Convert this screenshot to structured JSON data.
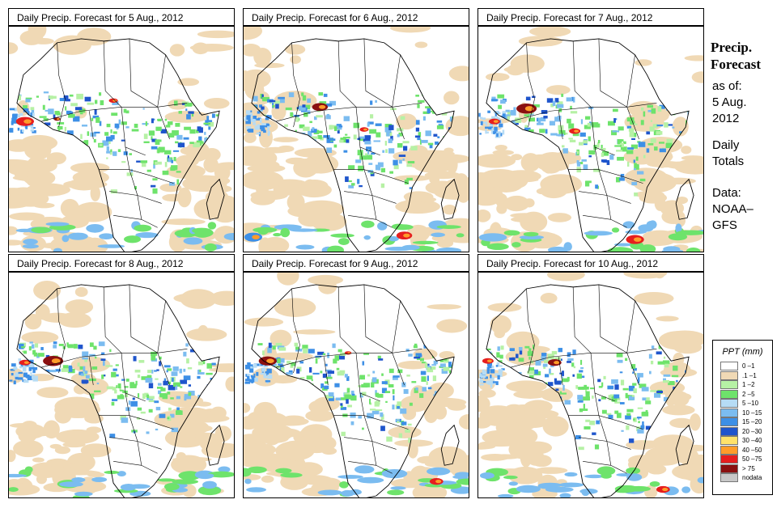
{
  "panels": [
    {
      "title": "Daily Precip. Forecast for  5 Aug., 2012"
    },
    {
      "title": "Daily Precip. Forecast for  6 Aug., 2012"
    },
    {
      "title": "Daily Precip. Forecast for  7 Aug., 2012"
    },
    {
      "title": "Daily Precip. Forecast for  8 Aug., 2012"
    },
    {
      "title": "Daily Precip. Forecast for  9 Aug., 2012"
    },
    {
      "title": "Daily Precip. Forecast for  10 Aug., 2012"
    }
  ],
  "sidebar": {
    "title_line1": "Precip.",
    "title_line2": "Forecast",
    "asof_label": "as of:",
    "asof_date_line1": "5 Aug.",
    "asof_date_line2": "2012",
    "period_line1": "Daily",
    "period_line2": "Totals",
    "source_line1": "Data:",
    "source_line2": "NOAA–",
    "source_line3": "GFS"
  },
  "legend": {
    "title": "PPT (mm)",
    "items": [
      {
        "label": "0 –1",
        "color": "#ffffff"
      },
      {
        "label": ".1 –1",
        "color": "#f0d9b5"
      },
      {
        "label": "1 –2",
        "color": "#b6f1a5"
      },
      {
        "label": "2 –5",
        "color": "#6ee36b"
      },
      {
        "label": "5 –10",
        "color": "#b6dcf5"
      },
      {
        "label": "10 –15",
        "color": "#7bbcf0"
      },
      {
        "label": "15 –20",
        "color": "#3d8fe6"
      },
      {
        "label": "20 –30",
        "color": "#1f55cc"
      },
      {
        "label": "30 –40",
        "color": "#ffe26a"
      },
      {
        "label": "40 –50",
        "color": "#ff9c2a"
      },
      {
        "label": "50 –75",
        "color": "#e61e1e"
      },
      {
        "label": "> 75",
        "color": "#8a1010"
      },
      {
        "label": "nodata",
        "color": "#c8c8c8"
      }
    ]
  }
}
